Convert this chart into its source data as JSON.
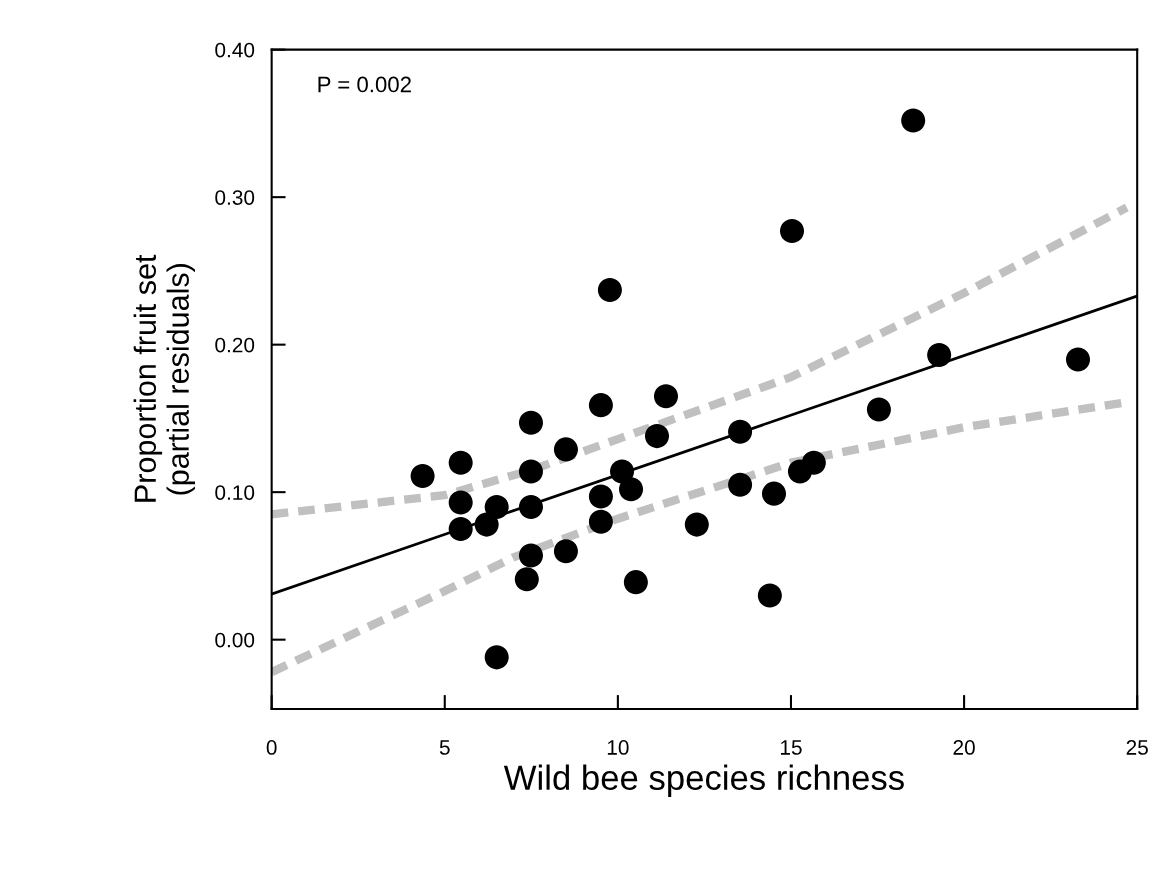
{
  "chart_data": {
    "type": "scatter",
    "xlabel": "Wild bee species richness",
    "ylabel": "Proportion fruit set\n(partial residuals)",
    "annotations": [
      "P = 0.002"
    ],
    "xlim": [
      0,
      25
    ],
    "xticks": [
      0,
      5,
      10,
      15,
      20,
      25
    ],
    "ylim": [
      -0.047,
      0.4
    ],
    "yticks": [
      {
        "value": 0.0,
        "label": "0.00"
      },
      {
        "value": 0.1,
        "label": "0.10"
      },
      {
        "value": 0.2,
        "label": "0.20"
      },
      {
        "value": 0.3,
        "label": "0.30"
      },
      {
        "value": 0.4,
        "label": "0.40"
      }
    ],
    "grid": false,
    "legend": false,
    "series": [
      {
        "color": "#000000",
        "marker": "circle",
        "x": [
          4.36,
          5.46,
          5.46,
          5.46,
          6.21,
          6.5,
          6.5,
          7.49,
          7.49,
          7.49,
          7.49,
          7.37,
          8.5,
          8.5,
          9.51,
          9.51,
          9.51,
          9.77,
          10.12,
          10.38,
          10.52,
          11.39,
          11.13,
          12.28,
          13.53,
          13.53,
          14.39,
          14.51,
          15.03,
          15.26,
          15.66,
          17.54,
          18.53,
          19.28,
          23.29
        ],
        "values": [
          0.111,
          0.12,
          0.093,
          0.075,
          0.078,
          0.09,
          -0.012,
          0.147,
          0.114,
          0.09,
          0.057,
          0.041,
          0.129,
          0.06,
          0.159,
          0.097,
          0.08,
          0.237,
          0.114,
          0.102,
          0.039,
          0.165,
          0.138,
          0.078,
          0.141,
          0.105,
          0.03,
          0.099,
          0.277,
          0.114,
          0.12,
          0.156,
          0.352,
          0.193,
          0.19
        ]
      },
      {
        "type": "line",
        "color": "#000000",
        "marker": "none",
        "line_style": "solid",
        "x": [
          0,
          25
        ],
        "values": [
          0.031,
          0.233
        ]
      },
      {
        "type": "line",
        "color": "#c0c0c0",
        "marker": "none",
        "line_style": "dashed",
        "x": [
          0,
          5,
          7.5,
          10,
          15,
          20,
          24.7
        ],
        "values": [
          0.085,
          0.098,
          0.115,
          0.136,
          0.178,
          0.235,
          0.293
        ]
      },
      {
        "type": "line",
        "color": "#c0c0c0",
        "marker": "none",
        "line_style": "dashed",
        "x": [
          0,
          5,
          7,
          10,
          15,
          20,
          24.7
        ],
        "values": [
          -0.022,
          0.033,
          0.056,
          0.082,
          0.12,
          0.144,
          0.161
        ]
      }
    ]
  }
}
